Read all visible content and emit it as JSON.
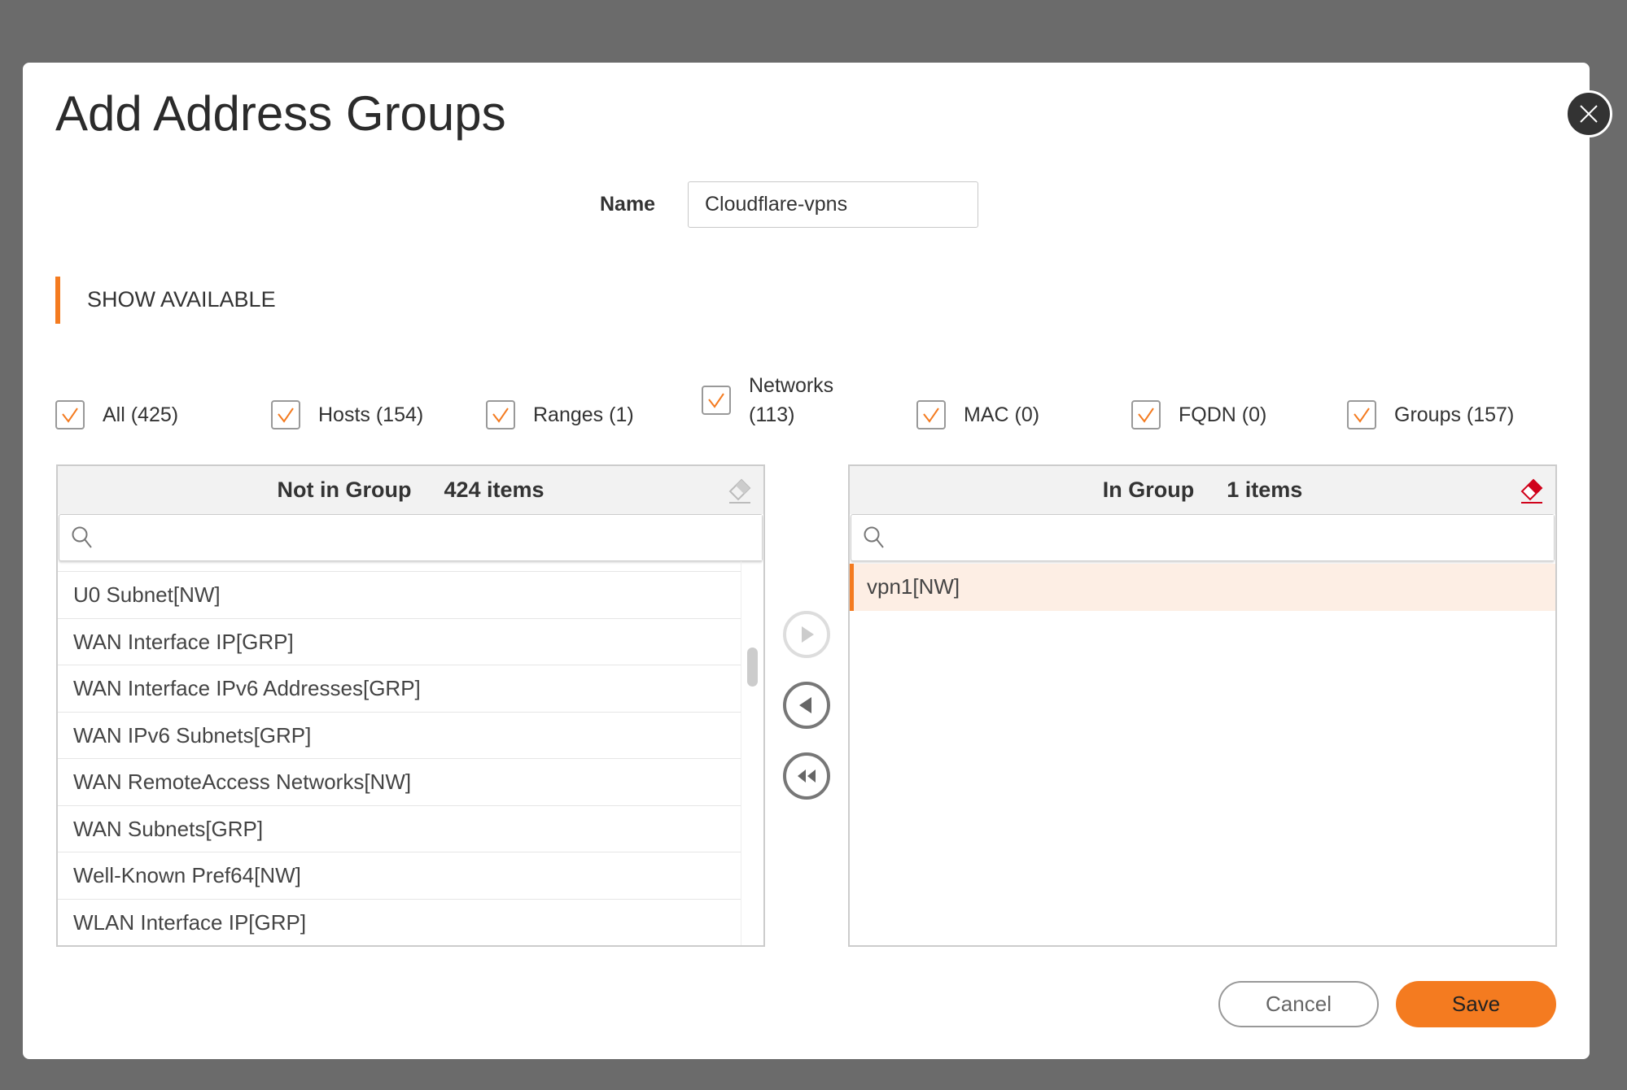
{
  "dialog": {
    "title": "Add Address Groups"
  },
  "name": {
    "label": "Name",
    "value": "Cloudflare-vpns"
  },
  "section": {
    "label": "SHOW AVAILABLE"
  },
  "filters": [
    {
      "label": "All (425)",
      "checked": true
    },
    {
      "label": "Hosts (154)",
      "checked": true
    },
    {
      "label": "Ranges (1)",
      "checked": true
    },
    {
      "label": "Networks",
      "label2": "(113)",
      "checked": true
    },
    {
      "label": "MAC (0)",
      "checked": true
    },
    {
      "label": "FQDN (0)",
      "checked": true
    },
    {
      "label": "Groups (157)",
      "checked": true
    }
  ],
  "left": {
    "title": "Not in Group",
    "count": "424 items",
    "search_placeholder": "",
    "items": [
      "U0 Subnet[NW]",
      "WAN Interface IP[GRP]",
      "WAN Interface IPv6 Addresses[GRP]",
      "WAN IPv6 Subnets[GRP]",
      "WAN RemoteAccess Networks[NW]",
      "WAN Subnets[GRP]",
      "Well-Known Pref64[NW]",
      "WLAN Interface IP[GRP]"
    ]
  },
  "right": {
    "title": "In Group",
    "count": "1 items",
    "search_placeholder": "",
    "items": [
      "vpn1[NW]"
    ]
  },
  "buttons": {
    "cancel": "Cancel",
    "save": "Save"
  },
  "colors": {
    "accent": "#f47b20",
    "selected_bg": "#fdeee4",
    "eraser_active": "#d0021b"
  }
}
